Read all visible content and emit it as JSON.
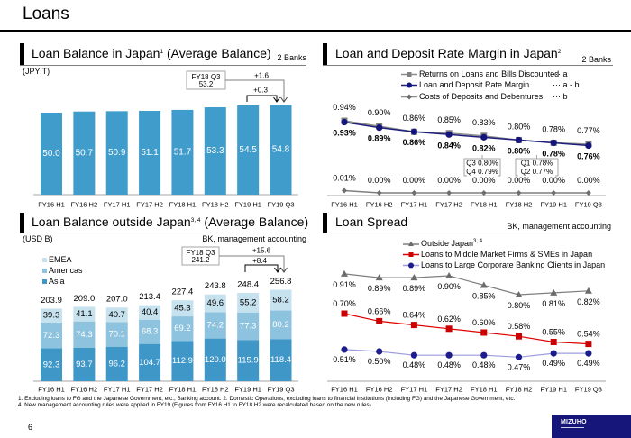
{
  "page": {
    "title": "Loans",
    "page_number": "6",
    "logo": "MIZUHO"
  },
  "panels": {
    "japan_balance": {
      "title": "Loan Balance in Japan",
      "sup": "1",
      "title_suffix": " (Average Balance)",
      "scope": "2 Banks",
      "unit": "(JPY T)",
      "callout": {
        "label": "FY18 Q3",
        "value": "53.2",
        "diff_total": "+1.6",
        "diff_recent": "+0.3"
      }
    },
    "rate_margin": {
      "title": "Loan and Deposit Rate Margin in Japan",
      "sup": "2",
      "scope": "2 Banks",
      "legend_suffixes": [
        "··· a",
        "··· a - b",
        "··· b"
      ],
      "notes": [
        [
          "Q3 0.80%",
          "Q4 0.79%"
        ],
        [
          "Q1 0.78%",
          "Q2 0.77%"
        ]
      ]
    },
    "overseas_balance": {
      "title": "Loan Balance outside Japan",
      "sup": "3, 4",
      "title_suffix": " (Average Balance)",
      "scope": "BK, management accounting",
      "unit": "(USD B)",
      "callout": {
        "label": "FY18 Q3",
        "value": "241.2",
        "diff_total": "+15.6",
        "diff_recent": "+8.4"
      }
    },
    "loan_spread": {
      "title": "Loan Spread",
      "scope": "BK, management accounting",
      "legend_sup": "3, 4"
    }
  },
  "footnotes": [
    "1. Excluding loans to FG and the Japanese Government, etc., Banking account. 2. Domestic Operations, excluding loans to financial institutions (including FG) and the Japanese Government, etc.",
    "4. New management accounting rules were applied in FY19 (Figures from FY16 H1 to FY18 H2 were recalculated based on the new rules)."
  ],
  "chart_data": [
    {
      "type": "bar",
      "title": "Loan Balance in Japan (Average Balance)",
      "ylabel": "JPY T",
      "categories": [
        "FY16 H1",
        "FY16 H2",
        "FY17 H1",
        "FY17 H2",
        "FY18 H1",
        "FY18 H2",
        "FY19 H1",
        "FY19 Q3"
      ],
      "values": [
        50.0,
        50.7,
        50.9,
        51.1,
        51.7,
        53.3,
        54.5,
        54.8
      ],
      "ylim": [
        0,
        60
      ],
      "grid": false,
      "color": "#3f9ccb"
    },
    {
      "type": "line",
      "title": "Loan and Deposit Rate Margin in Japan",
      "ylabel": "%",
      "categories": [
        "FY16 H1",
        "FY16 H2",
        "FY17 H1",
        "FY17 H2",
        "FY18 H1",
        "FY18 H2",
        "FY19 H1",
        "FY19 Q3"
      ],
      "series": [
        {
          "name": "Returns on Loans and Bills Discounted",
          "key": "a",
          "values": [
            0.94,
            0.9,
            0.86,
            0.85,
            0.83,
            0.8,
            0.78,
            0.77
          ],
          "color": "#808080",
          "marker": "square"
        },
        {
          "name": "Loan and Deposit Rate Margin",
          "key": "a - b",
          "values": [
            0.93,
            0.89,
            0.86,
            0.84,
            0.82,
            0.8,
            0.78,
            0.76
          ],
          "color": "#14147d",
          "marker": "circle"
        },
        {
          "name": "Costs of Deposits and Debentures",
          "key": "b",
          "values": [
            0.01,
            0.0,
            0.0,
            0.0,
            0.0,
            0.0,
            0.0,
            0.0
          ],
          "color": "#6e6e6e",
          "marker": "diamond"
        }
      ],
      "legend": "top",
      "grid": false
    },
    {
      "type": "bar",
      "stacked": true,
      "title": "Loan Balance outside Japan (Average Balance)",
      "ylabel": "USD B",
      "categories": [
        "FY16 H1",
        "FY16 H2",
        "FY17 H1",
        "FY17 H2",
        "FY18 H1",
        "FY18 H2",
        "FY19 H1",
        "FY19 Q3"
      ],
      "series": [
        {
          "name": "Asia",
          "values": [
            92.3,
            93.7,
            96.2,
            104.7,
            112.9,
            120.0,
            115.9,
            118.4
          ],
          "color": "#3f97c8"
        },
        {
          "name": "Americas",
          "values": [
            72.3,
            74.3,
            70.1,
            68.3,
            69.2,
            74.2,
            77.3,
            80.2
          ],
          "color": "#8dc3de"
        },
        {
          "name": "EMEA",
          "values": [
            39.3,
            41.1,
            40.7,
            40.4,
            45.3,
            49.6,
            55.2,
            58.2
          ],
          "color": "#c7e2ef"
        }
      ],
      "totals": [
        203.9,
        209.0,
        207.0,
        213.4,
        227.4,
        243.8,
        248.4,
        256.8
      ],
      "legend": "top-left",
      "grid": false
    },
    {
      "type": "line",
      "title": "Loan Spread",
      "ylabel": "%",
      "categories": [
        "FY16 H1",
        "FY16 H2",
        "FY17 H1",
        "FY17 H2",
        "FY18 H1",
        "FY18 H2",
        "FY19 H1",
        "FY19 Q3"
      ],
      "series": [
        {
          "name": "Outside Japan",
          "values": [
            0.91,
            0.89,
            0.89,
            0.9,
            0.85,
            0.8,
            0.81,
            0.82
          ],
          "color": "#6b6b6b",
          "marker": "triangle"
        },
        {
          "name": "Loans to Middle Market Firms & SMEs in Japan",
          "values": [
            0.7,
            0.66,
            0.64,
            0.62,
            0.6,
            0.58,
            0.55,
            0.54
          ],
          "color": "#cc0000",
          "marker": "square"
        },
        {
          "name": "Loans to Large Corporate Banking Clients in Japan",
          "values": [
            0.51,
            0.5,
            0.48,
            0.48,
            0.48,
            0.47,
            0.49,
            0.49
          ],
          "color": "#1c1c8c",
          "marker": "circle"
        }
      ],
      "legend": "top",
      "grid": false
    }
  ]
}
